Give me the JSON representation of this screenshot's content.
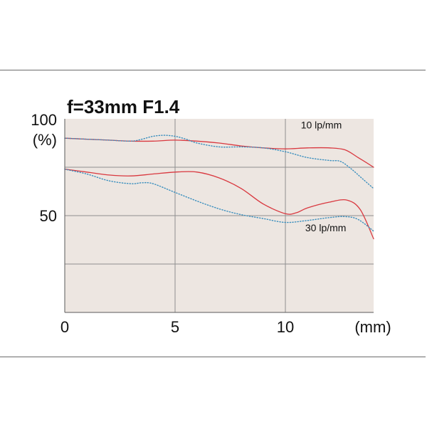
{
  "chart_data": {
    "type": "line",
    "title": "f=33mm F1.4",
    "ylabel_lines": [
      "100",
      "(%)"
    ],
    "xlabel": "(mm)",
    "xlim": [
      0,
      14
    ],
    "ylim": [
      0,
      100
    ],
    "x_ticks": [
      0,
      5,
      10
    ],
    "y_ticks": [
      50
    ],
    "x_gridlines": [
      5,
      10
    ],
    "y_gridlines": [
      25,
      50,
      75
    ],
    "grid": true,
    "plot_background": "#ede6e1",
    "series_labels": [
      {
        "text": "10 lp/mm",
        "x": 10.7,
        "y": 95
      },
      {
        "text": "30 lp/mm",
        "x": 10.9,
        "y": 42
      }
    ],
    "series": [
      {
        "group": "10 lp/mm",
        "style": "solid",
        "color": "#d9383f",
        "x": [
          0,
          1,
          2,
          3,
          4,
          5,
          6,
          7,
          8,
          9,
          10,
          11,
          12,
          12.7,
          13.3,
          14
        ],
        "y": [
          90,
          89.5,
          89,
          88.5,
          88.5,
          89,
          88.5,
          87.5,
          86,
          85,
          84.5,
          85,
          85,
          84,
          80,
          75
        ]
      },
      {
        "group": "10 lp/mm",
        "style": "dotted",
        "color": "#3b8fbe",
        "x": [
          0,
          1,
          2,
          3,
          3.5,
          4,
          4.5,
          5,
          5.5,
          6,
          7,
          8,
          9,
          10,
          11,
          12,
          12.5,
          13,
          13.5,
          14
        ],
        "y": [
          90,
          89.5,
          89,
          88.5,
          89.5,
          91,
          91.5,
          91,
          89.5,
          87.5,
          85.5,
          85.5,
          85,
          83,
          80,
          78.5,
          78,
          74,
          69,
          64
        ]
      },
      {
        "group": "30 lp/mm",
        "style": "solid",
        "color": "#d9383f",
        "x": [
          0,
          1,
          2,
          3,
          4,
          5,
          6,
          7,
          8,
          9,
          10,
          10.5,
          11,
          12,
          12.8,
          13.4,
          14
        ],
        "y": [
          74,
          72.5,
          71,
          70.5,
          71.5,
          72.5,
          72.5,
          69.5,
          64,
          56,
          51,
          51.5,
          54,
          57,
          58,
          53,
          38
        ]
      },
      {
        "group": "30 lp/mm",
        "style": "dotted",
        "color": "#3b8fbe",
        "x": [
          0,
          1,
          2,
          3,
          3.5,
          4,
          5,
          6,
          7,
          8,
          9,
          10,
          11,
          12,
          12.7,
          13.3,
          14
        ],
        "y": [
          74,
          71.5,
          68,
          66.5,
          67,
          66.5,
          62,
          57.5,
          53.5,
          50.5,
          48.5,
          46.5,
          47.5,
          49,
          49.5,
          48,
          42
        ]
      }
    ]
  }
}
